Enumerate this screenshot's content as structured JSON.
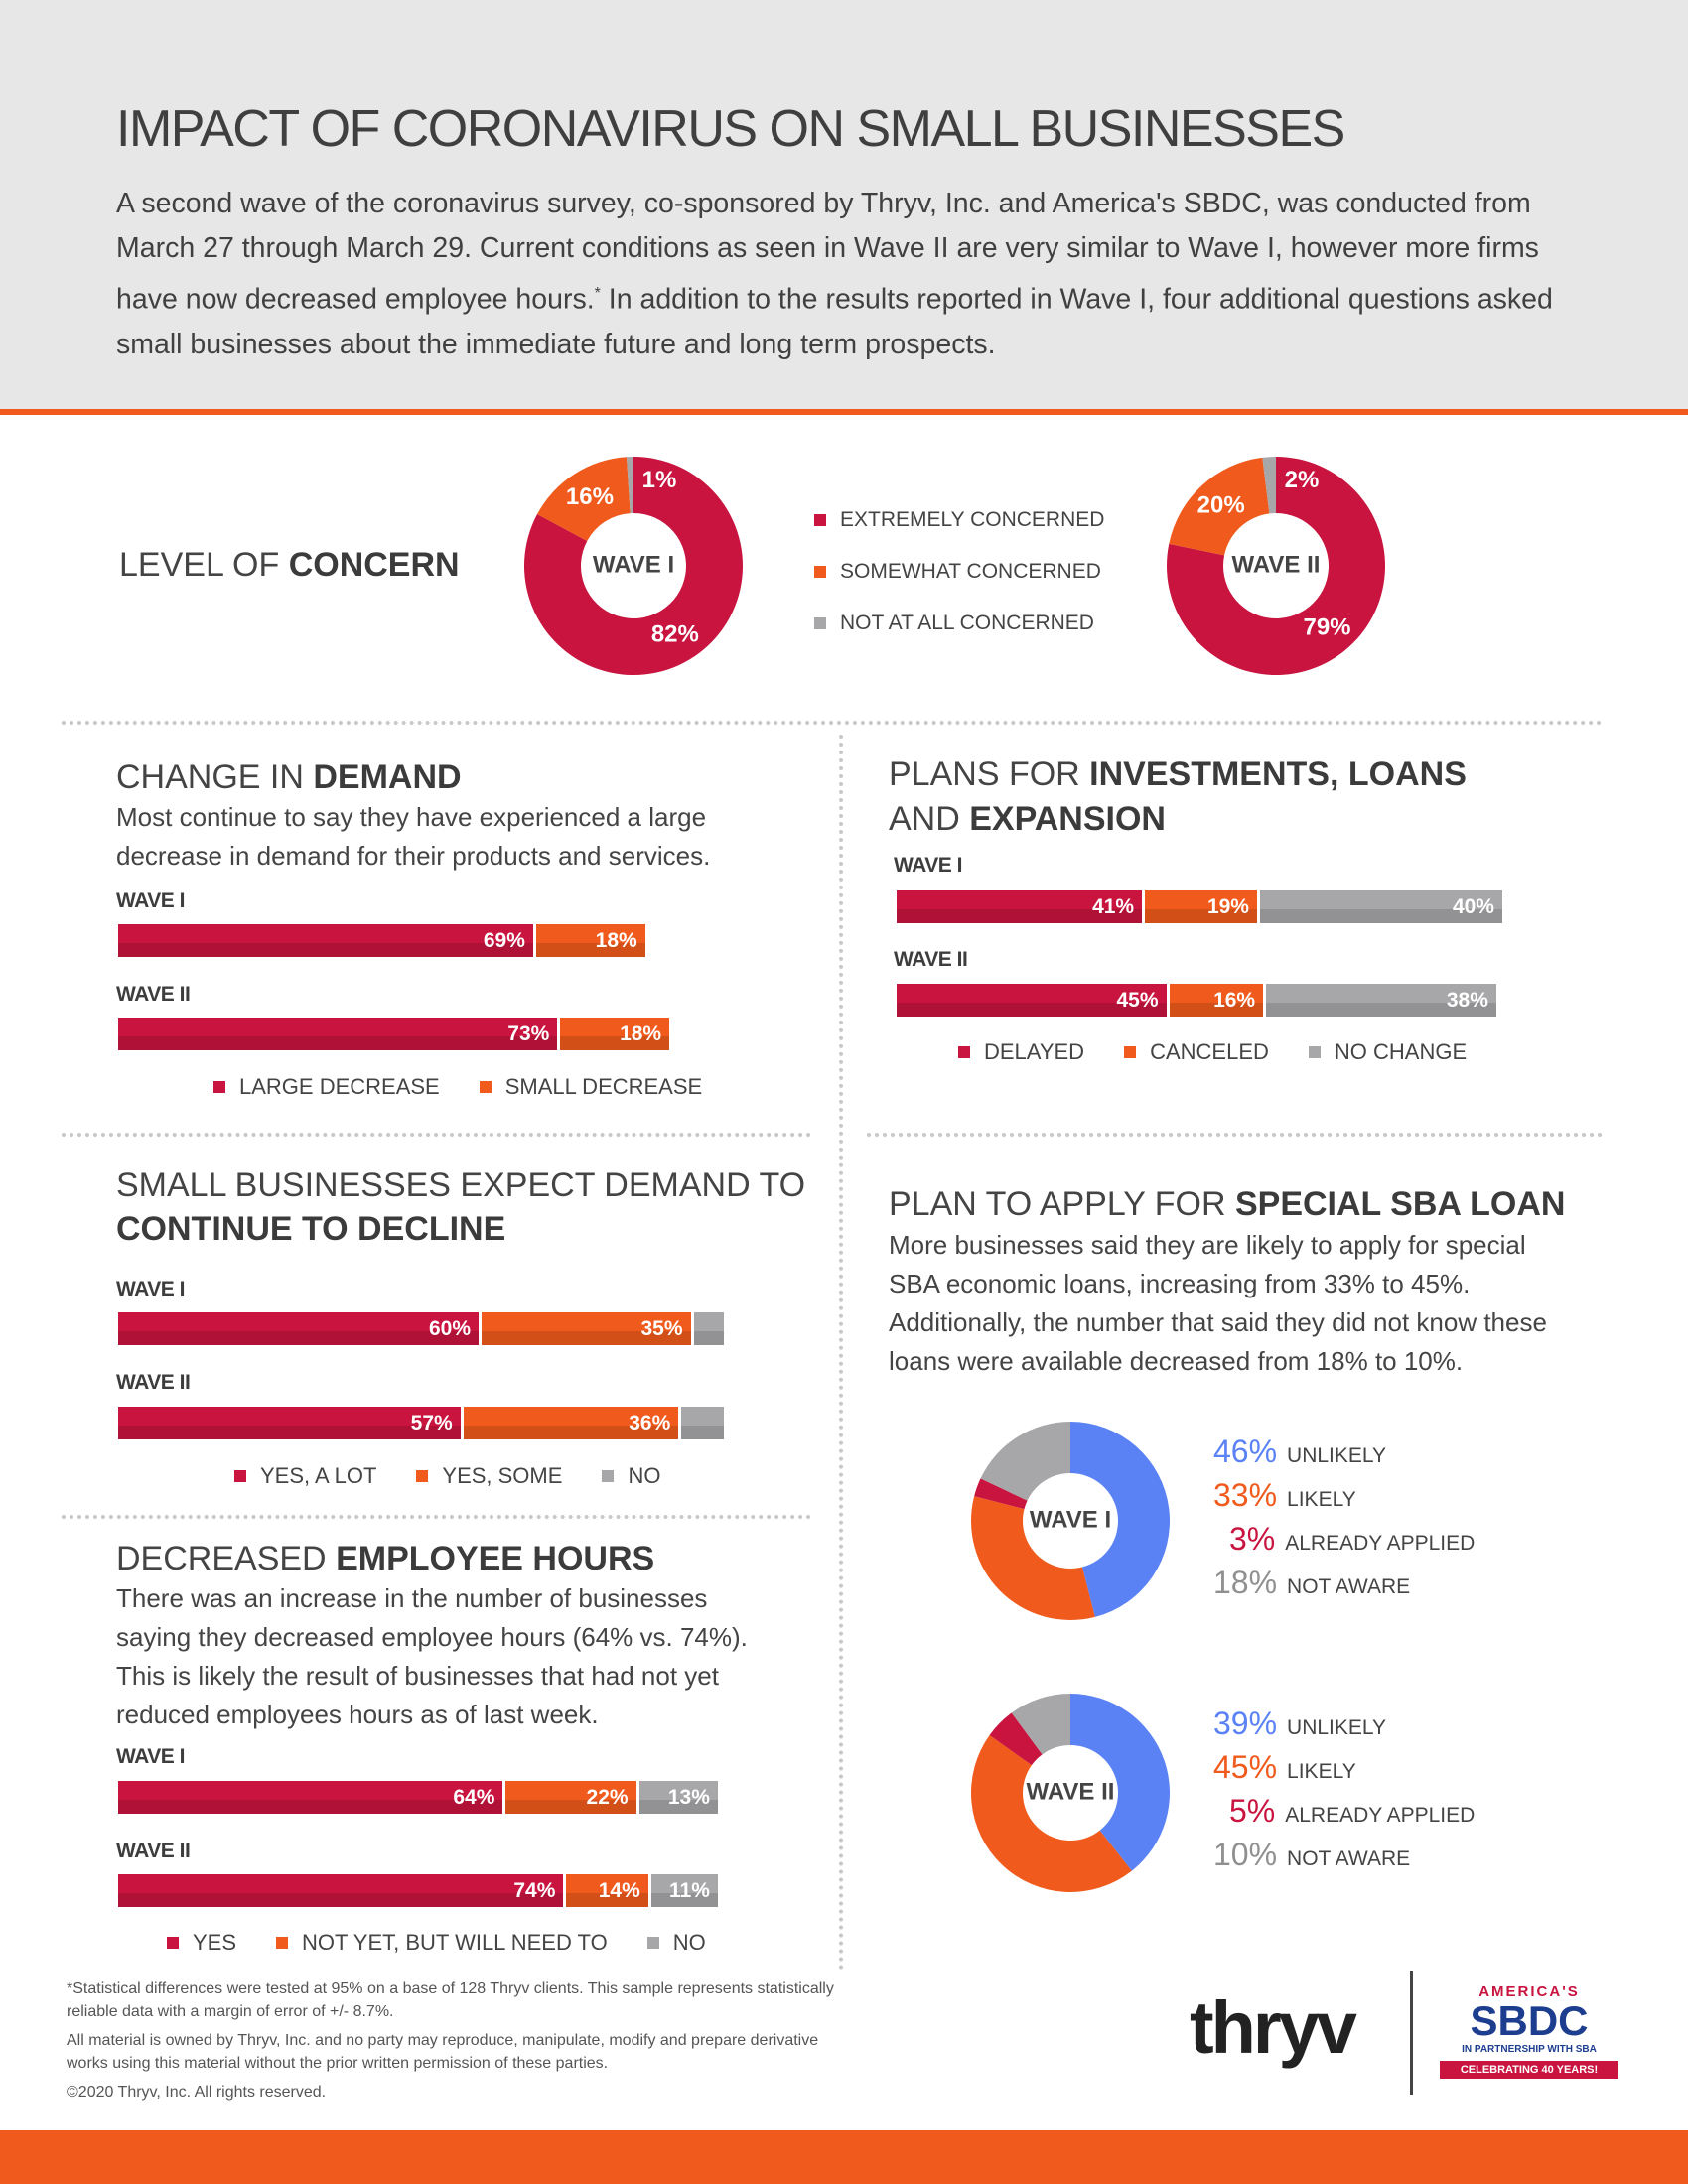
{
  "header": {
    "title": "IMPACT OF CORONAVIRUS ON SMALL BUSINESSES",
    "intro_1": "A second wave of the coronavirus survey, co-sponsored by Thryv, Inc. and America's SBDC, was conducted from March 27 through March 29. Current conditions as seen in Wave II are very similar to Wave I, however more firms have now decreased employee hours.",
    "intro_sup": "*",
    "intro_2": " In addition to the results reported in Wave I, four additional questions asked small businesses about the immediate future and long term prospects."
  },
  "colors": {
    "red": "#c8143f",
    "orange": "#f05a1c",
    "gray": "#a7a7a9",
    "blue": "#5a82f5"
  },
  "concern": {
    "title_a": "LEVEL OF ",
    "title_b": "CONCERN",
    "legend": [
      "EXTREMELY CONCERNED",
      "SOMEWHAT CONCERNED",
      "NOT AT ALL CONCERNED"
    ]
  },
  "demand": {
    "title_a": "CHANGE IN ",
    "title_b": "DEMAND",
    "desc": "Most continue to say they have experienced a large decrease in demand for their products and services.",
    "legend": [
      "LARGE DECREASE",
      "SMALL DECREASE"
    ]
  },
  "investments": {
    "title_a": "PLANS FOR ",
    "title_b": "INVESTMENTS, LOANS",
    "title_c": "AND ",
    "title_d": "EXPANSION",
    "legend": [
      "DELAYED",
      "CANCELED",
      "NO CHANGE"
    ]
  },
  "expect": {
    "title_a": "SMALL BUSINESSES EXPECT DEMAND TO",
    "title_b": "CONTINUE TO DECLINE",
    "legend": [
      "YES, A LOT",
      "YES, SOME",
      "NO"
    ]
  },
  "sba": {
    "title_a": "PLAN TO APPLY FOR ",
    "title_b": "SPECIAL SBA LOAN",
    "desc": "More businesses said they are likely to apply for special SBA economic loans, increasing from 33% to 45%. Additionally, the number that said they did not know these loans were available decreased from 18% to 10%."
  },
  "hours": {
    "title_a": "DECREASED ",
    "title_b": "EMPLOYEE HOURS",
    "desc": "There was an increase in the number of businesses saying they decreased employee hours (64% vs. 74%). This is likely the result of businesses that had not yet reduced employees hours as of last week.",
    "legend": [
      "YES",
      "NOT YET, BUT WILL NEED TO",
      "NO"
    ]
  },
  "footer": {
    "note_1": "*Statistical differences were tested at 95% on a base of 128 Thryv clients. This sample represents statistically reliable data with a margin of error of +/- 8.7%.",
    "note_2": "All material is owned by Thryv, Inc. and no party may reproduce, manipulate, modify and prepare derivative works using this material without the prior written permission of these parties.",
    "note_3": "©2020 Thryv, Inc.  All rights reserved.",
    "logo_thryv": "thryv",
    "logo_americas": "AMERICA'S",
    "logo_sbdc": "SBDC",
    "logo_partner": "IN PARTNERSHIP WITH SBA",
    "logo_celebrate": "CELEBRATING 40 YEARS!"
  },
  "chart_data": [
    {
      "id": "concern",
      "type": "pie",
      "categories": [
        "EXTREMELY CONCERNED",
        "SOMEWHAT CONCERNED",
        "NOT AT ALL CONCERNED"
      ],
      "series": [
        {
          "name": "WAVE I",
          "values": [
            82,
            16,
            1
          ],
          "labels": [
            "82%",
            "16%",
            "1%"
          ]
        },
        {
          "name": "WAVE II",
          "values": [
            79,
            20,
            2
          ],
          "labels": [
            "79%",
            "20%",
            "2%"
          ]
        }
      ]
    },
    {
      "id": "demand",
      "type": "bar",
      "categories": [
        "LARGE DECREASE",
        "SMALL DECREASE"
      ],
      "series": [
        {
          "name": "WAVE I",
          "values": [
            69,
            18
          ],
          "labels": [
            "69%",
            "18%"
          ]
        },
        {
          "name": "WAVE II",
          "values": [
            73,
            18
          ],
          "labels": [
            "73%",
            "18%"
          ]
        }
      ]
    },
    {
      "id": "investments",
      "type": "bar",
      "categories": [
        "DELAYED",
        "CANCELED",
        "NO CHANGE"
      ],
      "series": [
        {
          "name": "WAVE I",
          "values": [
            41,
            19,
            40
          ],
          "labels": [
            "41%",
            "19%",
            "40%"
          ]
        },
        {
          "name": "WAVE II",
          "values": [
            45,
            16,
            38
          ],
          "labels": [
            "45%",
            "16%",
            "38%"
          ]
        }
      ]
    },
    {
      "id": "expect",
      "type": "bar",
      "categories": [
        "YES, A LOT",
        "YES, SOME",
        "NO"
      ],
      "series": [
        {
          "name": "WAVE I",
          "values": [
            60,
            35,
            5
          ],
          "labels": [
            "60%",
            "35%",
            ""
          ]
        },
        {
          "name": "WAVE II",
          "values": [
            57,
            36,
            7
          ],
          "labels": [
            "57%",
            "36%",
            ""
          ]
        }
      ]
    },
    {
      "id": "hours",
      "type": "bar",
      "categories": [
        "YES",
        "NOT YET, BUT WILL NEED TO",
        "NO"
      ],
      "series": [
        {
          "name": "WAVE I",
          "values": [
            64,
            22,
            13
          ],
          "labels": [
            "64%",
            "22%",
            "13%"
          ]
        },
        {
          "name": "WAVE II",
          "values": [
            74,
            14,
            11
          ],
          "labels": [
            "74%",
            "14%",
            "11%"
          ]
        }
      ]
    },
    {
      "id": "sba",
      "type": "pie",
      "categories": [
        "UNLIKELY",
        "LIKELY",
        "ALREADY APPLIED",
        "NOT AWARE"
      ],
      "series": [
        {
          "name": "WAVE I",
          "values": [
            46,
            33,
            3,
            18
          ],
          "labels": [
            "46%",
            "33%",
            "3%",
            "18%"
          ]
        },
        {
          "name": "WAVE II",
          "values": [
            39,
            45,
            5,
            10
          ],
          "labels": [
            "39%",
            "45%",
            "5%",
            "10%"
          ]
        }
      ]
    }
  ]
}
